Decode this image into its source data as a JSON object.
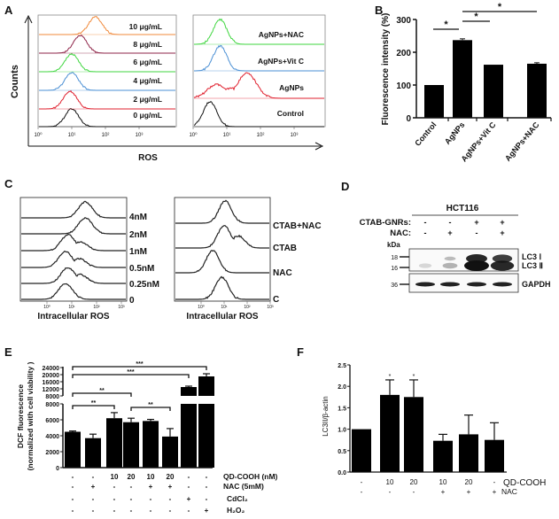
{
  "panel_labels": {
    "A": "A",
    "B": "B",
    "C": "C",
    "D": "D",
    "E": "E",
    "F": "F"
  },
  "chart_data": [
    {
      "panel": "A",
      "type": "histogram",
      "xlabel": "ROS",
      "ylabel": "Counts",
      "x_scale": "log",
      "x_ticks": [
        "10⁰",
        "10¹",
        "10²",
        "10³"
      ],
      "plots": [
        {
          "traces": [
            {
              "label": "10 μg/mL",
              "color": "#f0893a",
              "peaks_log10": [
                1.7
              ]
            },
            {
              "label": "8 μg/mL",
              "color": "#8e2448",
              "peaks_log10": [
                1.25
              ]
            },
            {
              "label": "6 μg/mL",
              "color": "#3fd63f",
              "peaks_log10": [
                1.0
              ]
            },
            {
              "label": "4 μg/mL",
              "color": "#4a8fd4",
              "peaks_log10": [
                1.0
              ]
            },
            {
              "label": "2 μg/mL",
              "color": "#e0202e",
              "peaks_log10": [
                0.95
              ]
            },
            {
              "label": "0 μg/mL",
              "color": "#111111",
              "peaks_log10": [
                1.0
              ]
            }
          ]
        },
        {
          "traces": [
            {
              "label": "AgNPs+NAC",
              "color": "#3fd63f",
              "peaks_log10": [
                0.8
              ]
            },
            {
              "label": "AgNPs+Vit C",
              "color": "#4a8fd4",
              "peaks_log10": [
                0.8
              ]
            },
            {
              "label": "AgNPs",
              "color": "#e0202e",
              "peaks_log10": [
                1.6,
                0.7
              ]
            },
            {
              "label": "Control",
              "color": "#111111",
              "peaks_log10": [
                0.5
              ]
            }
          ]
        }
      ]
    },
    {
      "panel": "B",
      "type": "bar",
      "ylabel": "Fluorescence intensity (%)",
      "ylim": [
        0,
        300
      ],
      "y_ticks": [
        "0",
        "100",
        "200",
        "300"
      ],
      "categories": [
        "Control",
        "AgNPs",
        "AgNPs+Vit C",
        "AgNPs+NAC"
      ],
      "values": [
        100,
        237,
        162,
        165
      ],
      "errors": [
        0,
        4,
        0,
        3
      ],
      "significance": [
        {
          "from": 0,
          "to": 1,
          "label": "*"
        },
        {
          "from": 1,
          "to": 2,
          "label": "*"
        },
        {
          "from": 1,
          "to": 3,
          "label": "*"
        }
      ]
    },
    {
      "panel": "C",
      "type": "histogram",
      "xlabel": "Intracellular ROS",
      "x_scale": "log",
      "x_ticks": [
        "10⁰",
        "10¹",
        "10²",
        "10³"
      ],
      "plots": [
        {
          "traces": [
            {
              "label": "4nM",
              "peaks_log10": [
                1.55
              ]
            },
            {
              "label": "2nM",
              "peaks_log10": [
                1.55
              ]
            },
            {
              "label": "1nM",
              "peaks_log10": [
                0.85,
                1.35
              ]
            },
            {
              "label": "0.5nM",
              "peaks_log10": [
                0.75,
                1.3
              ]
            },
            {
              "label": "0.25nM",
              "peaks_log10": [
                0.85,
                1.35
              ]
            },
            {
              "label": "0",
              "peaks_log10": [
                0.75
              ]
            }
          ]
        },
        {
          "traces": [
            {
              "label": "CTAB+NAC",
              "peaks_log10": [
                1.05
              ]
            },
            {
              "label": "CTAB",
              "peaks_log10": [
                1.0,
                1.6
              ]
            },
            {
              "label": "NAC",
              "peaks_log10": [
                0.5
              ]
            },
            {
              "label": "C",
              "peaks_log10": [
                0.9
              ]
            }
          ]
        }
      ]
    },
    {
      "panel": "E",
      "type": "bar",
      "ylabel": "DCF fluorescence",
      "ylabel2": "(normalized with cell viability )",
      "y_axis_break": [
        8000,
        8000
      ],
      "y_ticks_lower": [
        "0",
        "2000",
        "4000",
        "6000",
        "8000"
      ],
      "y_ticks_upper": [
        "8000",
        "12000",
        "16000",
        "20000",
        "24000"
      ],
      "values": [
        4500,
        3700,
        6200,
        5700,
        5850,
        3900,
        13000,
        19000
      ],
      "errors": [
        100,
        500,
        700,
        500,
        200,
        1000,
        500,
        1500
      ],
      "significance": [
        {
          "from": 0,
          "to": 7,
          "label": "***"
        },
        {
          "from": 0,
          "to": 6,
          "label": "***"
        },
        {
          "from": 0,
          "to": 3,
          "label": "**"
        },
        {
          "from": 0,
          "to": 2,
          "label": "**"
        },
        {
          "from": 3,
          "to": 5,
          "label": "**"
        }
      ],
      "conditions": [
        {
          "label": "QD-COOH (nM)",
          "values": [
            "-",
            "-",
            "10",
            "20",
            "10",
            "20",
            "-",
            "-"
          ]
        },
        {
          "label": "NAC (5mM)",
          "values": [
            "-",
            "+",
            "-",
            "-",
            "+",
            "+",
            "-",
            "-"
          ]
        },
        {
          "label": "CdCl₂",
          "values": [
            "-",
            "-",
            "-",
            "-",
            "-",
            "-",
            "+",
            "-"
          ]
        },
        {
          "label": "H₂O₂",
          "values": [
            "-",
            "-",
            "-",
            "-",
            "-",
            "-",
            "-",
            "+"
          ]
        }
      ]
    },
    {
      "panel": "F",
      "type": "bar",
      "ylabel": "LC3II/β-actin",
      "ylim": [
        0,
        2.5
      ],
      "y_ticks": [
        "0.0",
        "0.5",
        "1.0",
        "1.5",
        "2.0",
        "2.5"
      ],
      "values": [
        1.0,
        1.8,
        1.75,
        0.73,
        0.88,
        0.75
      ],
      "errors": [
        0,
        0.35,
        0.4,
        0.15,
        0.45,
        0.4
      ],
      "marks": [
        "",
        "*",
        "*",
        "",
        "",
        ""
      ],
      "conditions": [
        {
          "label": "QD-COOH",
          "values": [
            "-",
            "10",
            "20",
            "10",
            "20",
            "-"
          ]
        },
        {
          "label": "NAC",
          "values": [
            "-",
            "-",
            "-",
            "+",
            "+",
            "+"
          ]
        }
      ]
    }
  ],
  "blot": {
    "panel": "D",
    "cell_line": "HCT116",
    "rows": [
      {
        "label": "CTAB-GNRs:",
        "values": [
          "-",
          "-",
          "+",
          "+"
        ]
      },
      {
        "label": "NAC:",
        "values": [
          "-",
          "+",
          "-",
          "+"
        ]
      }
    ],
    "kda_label": "kDa",
    "markers": [
      "18",
      "16",
      "36"
    ],
    "band_labels": [
      "LC3 Ⅰ",
      "LC3 Ⅱ",
      "GAPDH"
    ],
    "lc3_intensity": [
      0.15,
      0.3,
      1.0,
      0.9
    ]
  }
}
